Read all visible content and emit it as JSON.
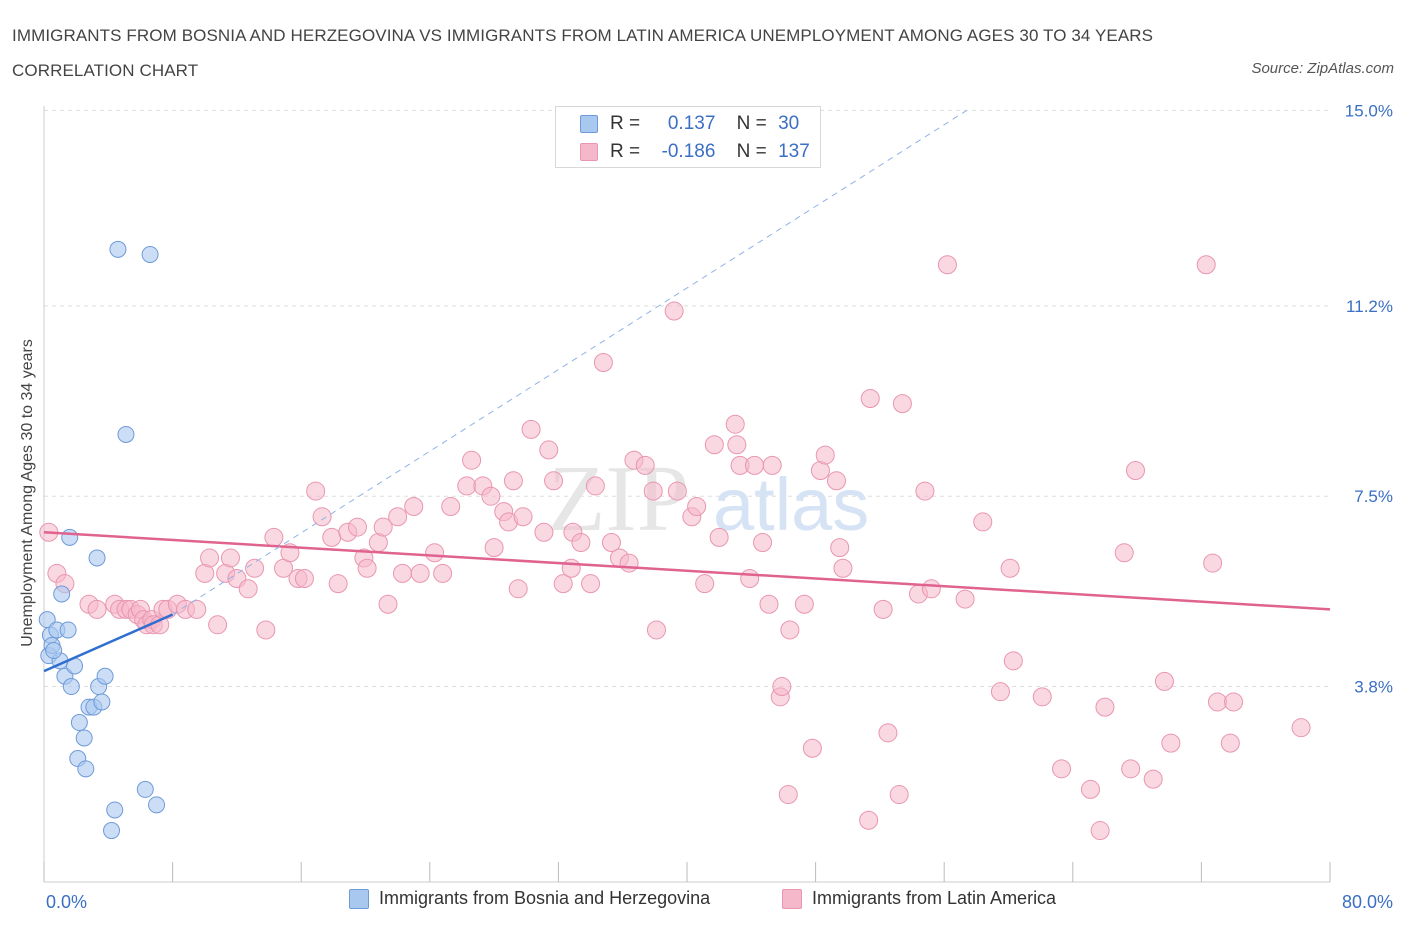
{
  "title": "IMMIGRANTS FROM BOSNIA AND HERZEGOVINA VS IMMIGRANTS FROM LATIN AMERICA UNEMPLOYMENT AMONG AGES 30 TO 34 YEARS CORRELATION CHART",
  "source": "Source: ZipAtlas.com",
  "watermark": {
    "zip": "ZIP",
    "atlas": "atlas"
  },
  "legend": {
    "series1": {
      "r_label": "R =",
      "r_value": "0.137",
      "n_label": "N =",
      "n_value": "30"
    },
    "series2": {
      "r_label": "R =",
      "r_value": "-0.186",
      "n_label": "N =",
      "n_value": "137"
    }
  },
  "colors": {
    "blue_fill": "#a8c8f0",
    "blue_stroke": "#6f9ad8",
    "blue_line": "#2f6fd0",
    "pink_fill": "#f5b8cb",
    "pink_stroke": "#e996b0",
    "pink_line": "#e0628f",
    "tick_label": "#3a6fc4",
    "grid": "#dddddd"
  },
  "chart_data": {
    "type": "scatter",
    "title": "IMMIGRANTS FROM BOSNIA AND HERZEGOVINA VS IMMIGRANTS FROM LATIN AMERICA UNEMPLOYMENT AMONG AGES 30 TO 34 YEARS CORRELATION CHART",
    "xlabel": "",
    "ylabel": "Unemployment Among Ages 30 to 34 years",
    "xlim": [
      0,
      80
    ],
    "ylim": [
      0,
      15.3
    ],
    "x_tick_labels": [
      "0.0%",
      "80.0%"
    ],
    "y_ticks": [
      3.8,
      7.5,
      11.2,
      15.0
    ],
    "y_tick_labels": [
      "3.8%",
      "7.5%",
      "11.2%",
      "15.0%"
    ],
    "grid": true,
    "legend_position": "bottom",
    "series": [
      {
        "name": "Immigrants from Bosnia and Herzegovina",
        "color": "#a8c8f0",
        "r": 0.137,
        "n": 30,
        "trend_solid": [
          [
            0,
            4.1
          ],
          [
            8,
            5.2
          ]
        ],
        "trend_dashed": [
          [
            8,
            5.2
          ],
          [
            57.4,
            15.0
          ]
        ],
        "points": [
          [
            0.2,
            5.1
          ],
          [
            0.3,
            4.4
          ],
          [
            0.4,
            4.8
          ],
          [
            0.5,
            4.6
          ],
          [
            0.8,
            4.9
          ],
          [
            1.0,
            4.3
          ],
          [
            1.1,
            5.6
          ],
          [
            1.3,
            4.0
          ],
          [
            1.5,
            4.9
          ],
          [
            1.6,
            6.7
          ],
          [
            1.7,
            3.8
          ],
          [
            1.9,
            4.2
          ],
          [
            2.1,
            2.4
          ],
          [
            2.2,
            3.1
          ],
          [
            2.5,
            2.8
          ],
          [
            2.6,
            2.2
          ],
          [
            2.8,
            3.4
          ],
          [
            3.1,
            3.4
          ],
          [
            3.3,
            6.3
          ],
          [
            3.4,
            3.8
          ],
          [
            3.6,
            3.5
          ],
          [
            3.8,
            4.0
          ],
          [
            4.2,
            1.0
          ],
          [
            4.4,
            1.4
          ],
          [
            4.6,
            12.3
          ],
          [
            5.1,
            8.7
          ],
          [
            6.3,
            1.8
          ],
          [
            6.6,
            12.2
          ],
          [
            7.0,
            1.5
          ],
          [
            0.6,
            4.5
          ]
        ]
      },
      {
        "name": "Immigrants from Latin America",
        "color": "#f5b8cb",
        "r": -0.186,
        "n": 137,
        "trend": [
          [
            0,
            6.8
          ],
          [
            80,
            5.3
          ]
        ],
        "points": [
          [
            0.3,
            6.8
          ],
          [
            0.8,
            6.0
          ],
          [
            1.3,
            5.8
          ],
          [
            2.8,
            5.4
          ],
          [
            3.3,
            5.3
          ],
          [
            4.4,
            5.4
          ],
          [
            4.7,
            5.3
          ],
          [
            5.1,
            5.3
          ],
          [
            5.4,
            5.3
          ],
          [
            5.8,
            5.2
          ],
          [
            6.0,
            5.3
          ],
          [
            6.2,
            5.1
          ],
          [
            6.4,
            5.0
          ],
          [
            6.7,
            5.1
          ],
          [
            6.8,
            5.0
          ],
          [
            7.2,
            5.0
          ],
          [
            7.4,
            5.3
          ],
          [
            7.7,
            5.3
          ],
          [
            8.3,
            5.4
          ],
          [
            8.8,
            5.3
          ],
          [
            9.5,
            5.3
          ],
          [
            10.0,
            6.0
          ],
          [
            10.3,
            6.3
          ],
          [
            10.8,
            5.0
          ],
          [
            11.3,
            6.0
          ],
          [
            11.6,
            6.3
          ],
          [
            12.0,
            5.9
          ],
          [
            12.7,
            5.7
          ],
          [
            13.1,
            6.1
          ],
          [
            13.8,
            4.9
          ],
          [
            14.3,
            6.7
          ],
          [
            14.9,
            6.1
          ],
          [
            15.3,
            6.4
          ],
          [
            15.8,
            5.9
          ],
          [
            16.2,
            5.9
          ],
          [
            16.9,
            7.6
          ],
          [
            17.3,
            7.1
          ],
          [
            17.9,
            6.7
          ],
          [
            18.3,
            5.8
          ],
          [
            18.9,
            6.8
          ],
          [
            19.5,
            6.9
          ],
          [
            19.9,
            6.3
          ],
          [
            20.1,
            6.1
          ],
          [
            20.8,
            6.6
          ],
          [
            21.1,
            6.9
          ],
          [
            21.4,
            5.4
          ],
          [
            22.0,
            7.1
          ],
          [
            22.3,
            6.0
          ],
          [
            23.0,
            7.3
          ],
          [
            23.4,
            6.0
          ],
          [
            24.3,
            6.4
          ],
          [
            24.8,
            6.0
          ],
          [
            25.3,
            7.3
          ],
          [
            26.3,
            7.7
          ],
          [
            26.6,
            8.2
          ],
          [
            27.3,
            7.7
          ],
          [
            27.8,
            7.5
          ],
          [
            28.0,
            6.5
          ],
          [
            28.6,
            7.2
          ],
          [
            28.9,
            7.0
          ],
          [
            29.2,
            7.8
          ],
          [
            29.5,
            5.7
          ],
          [
            29.8,
            7.1
          ],
          [
            30.3,
            8.8
          ],
          [
            31.1,
            6.8
          ],
          [
            31.4,
            8.4
          ],
          [
            31.7,
            7.8
          ],
          [
            32.3,
            5.8
          ],
          [
            32.8,
            6.1
          ],
          [
            32.9,
            6.8
          ],
          [
            33.4,
            6.6
          ],
          [
            34.0,
            5.8
          ],
          [
            34.3,
            7.7
          ],
          [
            34.8,
            10.1
          ],
          [
            35.3,
            6.6
          ],
          [
            35.8,
            6.3
          ],
          [
            36.4,
            6.2
          ],
          [
            36.7,
            8.2
          ],
          [
            37.4,
            8.1
          ],
          [
            37.9,
            7.6
          ],
          [
            38.1,
            4.9
          ],
          [
            39.2,
            11.1
          ],
          [
            39.4,
            7.6
          ],
          [
            40.3,
            7.1
          ],
          [
            40.6,
            7.3
          ],
          [
            41.1,
            5.8
          ],
          [
            41.7,
            8.5
          ],
          [
            42.0,
            6.7
          ],
          [
            43.0,
            8.9
          ],
          [
            43.1,
            8.5
          ],
          [
            43.3,
            8.1
          ],
          [
            43.9,
            5.9
          ],
          [
            44.2,
            8.1
          ],
          [
            44.7,
            6.6
          ],
          [
            45.1,
            5.4
          ],
          [
            45.3,
            8.1
          ],
          [
            45.8,
            3.6
          ],
          [
            45.9,
            3.8
          ],
          [
            46.3,
            1.7
          ],
          [
            46.4,
            4.9
          ],
          [
            47.3,
            5.4
          ],
          [
            47.8,
            2.6
          ],
          [
            48.3,
            8.0
          ],
          [
            48.6,
            8.3
          ],
          [
            49.3,
            7.8
          ],
          [
            49.5,
            6.5
          ],
          [
            49.7,
            6.1
          ],
          [
            51.3,
            1.2
          ],
          [
            51.4,
            9.4
          ],
          [
            52.2,
            5.3
          ],
          [
            52.5,
            2.9
          ],
          [
            53.2,
            1.7
          ],
          [
            53.4,
            9.3
          ],
          [
            54.4,
            5.6
          ],
          [
            54.8,
            7.6
          ],
          [
            55.2,
            5.7
          ],
          [
            56.2,
            12.0
          ],
          [
            57.3,
            5.5
          ],
          [
            58.4,
            7.0
          ],
          [
            59.5,
            3.7
          ],
          [
            60.1,
            6.1
          ],
          [
            60.3,
            4.3
          ],
          [
            62.1,
            3.6
          ],
          [
            63.3,
            2.2
          ],
          [
            65.1,
            1.8
          ],
          [
            65.7,
            1.0
          ],
          [
            66.0,
            3.4
          ],
          [
            67.2,
            6.4
          ],
          [
            67.6,
            2.2
          ],
          [
            67.9,
            8.0
          ],
          [
            69.0,
            2.0
          ],
          [
            69.7,
            3.9
          ],
          [
            70.1,
            2.7
          ],
          [
            72.3,
            12.0
          ],
          [
            72.7,
            6.2
          ],
          [
            73.0,
            3.5
          ],
          [
            73.8,
            2.7
          ],
          [
            74.0,
            3.5
          ],
          [
            78.2,
            3.0
          ]
        ]
      }
    ]
  },
  "bottom_legend": {
    "series1": "Immigrants from Bosnia and Herzegovina",
    "series2": "Immigrants from Latin America"
  }
}
